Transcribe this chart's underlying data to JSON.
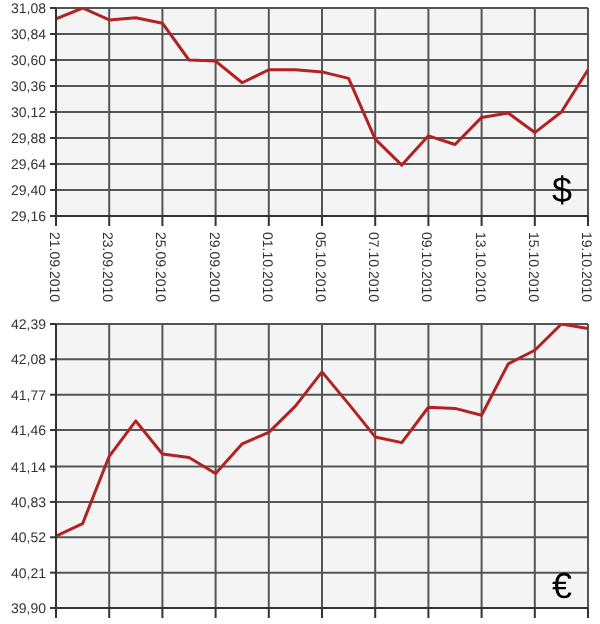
{
  "chart_data": [
    {
      "type": "line",
      "categories": [
        "21.09.2010",
        null,
        "23.09.2010",
        null,
        "25.09.2010",
        null,
        "29.09.2010",
        null,
        "01.10.2010",
        null,
        "05.10.2010",
        null,
        "07.10.2010",
        null,
        "09.10.2010",
        null,
        "13.10.2010",
        null,
        "15.10.2010",
        null,
        "19.10.2010"
      ],
      "series": [
        {
          "color": "#b22222",
          "values": [
            30.98,
            31.08,
            30.97,
            30.99,
            30.94,
            30.6,
            30.59,
            30.39,
            30.51,
            30.51,
            30.49,
            30.43,
            29.87,
            29.63,
            29.9,
            29.82,
            30.07,
            30.11,
            29.93,
            30.12,
            30.51
          ]
        }
      ],
      "ylim": [
        29.16,
        31.08
      ],
      "yticks": [
        {
          "value": 29.16,
          "label": "29,16"
        },
        {
          "value": 29.4,
          "label": "29,40"
        },
        {
          "value": 29.64,
          "label": "29,64"
        },
        {
          "value": 29.88,
          "label": "29,88"
        },
        {
          "value": 30.12,
          "label": "30,12"
        },
        {
          "value": 30.36,
          "label": "30,36"
        },
        {
          "value": 30.6,
          "label": "30,60"
        },
        {
          "value": 30.84,
          "label": "30,84"
        },
        {
          "value": 31.08,
          "label": "31,08"
        }
      ],
      "grid": true,
      "marker": "none",
      "annotations": [
        "$"
      ]
    },
    {
      "type": "line",
      "categories": [
        "21.09.2010",
        null,
        "23.09.2010",
        null,
        "25.09.2010",
        null,
        "29.09.2010",
        null,
        "01.10.2010",
        null,
        "05.10.2010",
        null,
        "07.10.2010",
        null,
        "09.10.2010",
        null,
        "13.10.2010",
        null,
        "15.10.2010",
        null,
        "19.10.2010"
      ],
      "series": [
        {
          "color": "#b22222",
          "values": [
            40.53,
            40.64,
            41.23,
            41.54,
            41.25,
            41.22,
            41.08,
            41.34,
            41.44,
            41.67,
            41.97,
            41.69,
            41.4,
            41.35,
            41.66,
            41.65,
            41.59,
            42.04,
            42.16,
            42.39,
            42.35
          ]
        }
      ],
      "ylim": [
        39.9,
        42.39
      ],
      "yticks": [
        {
          "value": 39.9,
          "label": "39,90"
        },
        {
          "value": 40.21,
          "label": "40,21"
        },
        {
          "value": 40.52,
          "label": "40,52"
        },
        {
          "value": 40.83,
          "label": "40,83"
        },
        {
          "value": 41.14,
          "label": "41,14"
        },
        {
          "value": 41.46,
          "label": "41,46"
        },
        {
          "value": 41.77,
          "label": "41,77"
        },
        {
          "value": 42.08,
          "label": "42,08"
        },
        {
          "value": 42.39,
          "label": "42,39"
        }
      ],
      "grid": true,
      "marker": "none",
      "tick_labels": "y",
      "annotations": [
        "€"
      ]
    }
  ]
}
